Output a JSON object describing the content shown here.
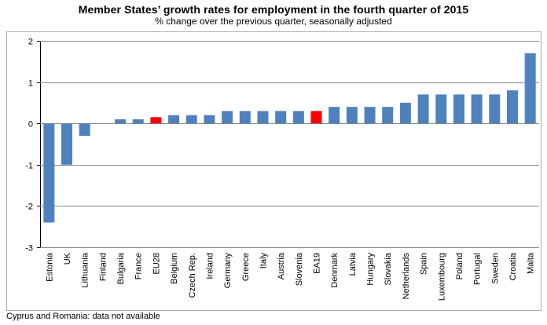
{
  "title": "Member States’ growth rates for employment in the fourth quarter of 2015",
  "subtitle": "% change over the previous quarter, seasonally adjusted",
  "footnote": "Cyprus and Romania: data not available",
  "colors": {
    "bar": "#4f81bd",
    "highlight": "#ff0000",
    "grid": "#878787",
    "frame": "#aaaaaa"
  },
  "chart_data": {
    "type": "bar",
    "title": "Member States’ growth rates for employment in the fourth quarter of 2015",
    "subtitle": "% change over the previous quarter, seasonally adjusted",
    "xlabel": "",
    "ylabel": "",
    "ylim": [
      -3,
      2
    ],
    "yticks": [
      2,
      1,
      0,
      -1,
      -2,
      -3
    ],
    "grid": true,
    "categories": [
      "Estonia",
      "UK",
      "Lithuania",
      "Finland",
      "Bulgaria",
      "France",
      "EU28",
      "Belgium",
      "Czech Rep.",
      "Ireland",
      "Germany",
      "Greece",
      "Italy",
      "Austria",
      "Slovenia",
      "EA19",
      "Denmark",
      "Latvia",
      "Hungary",
      "Slovakia",
      "Netherlands",
      "Spain",
      "Luxembourg",
      "Poland",
      "Portugal",
      "Sweden",
      "Croatia",
      "Malta"
    ],
    "values": [
      -2.4,
      -1.0,
      -0.3,
      0.0,
      0.1,
      0.1,
      0.15,
      0.2,
      0.2,
      0.2,
      0.3,
      0.3,
      0.3,
      0.3,
      0.3,
      0.3,
      0.4,
      0.4,
      0.4,
      0.4,
      0.5,
      0.7,
      0.7,
      0.7,
      0.7,
      0.7,
      0.8,
      1.7
    ],
    "highlighted": [
      "EU28",
      "EA19"
    ]
  }
}
